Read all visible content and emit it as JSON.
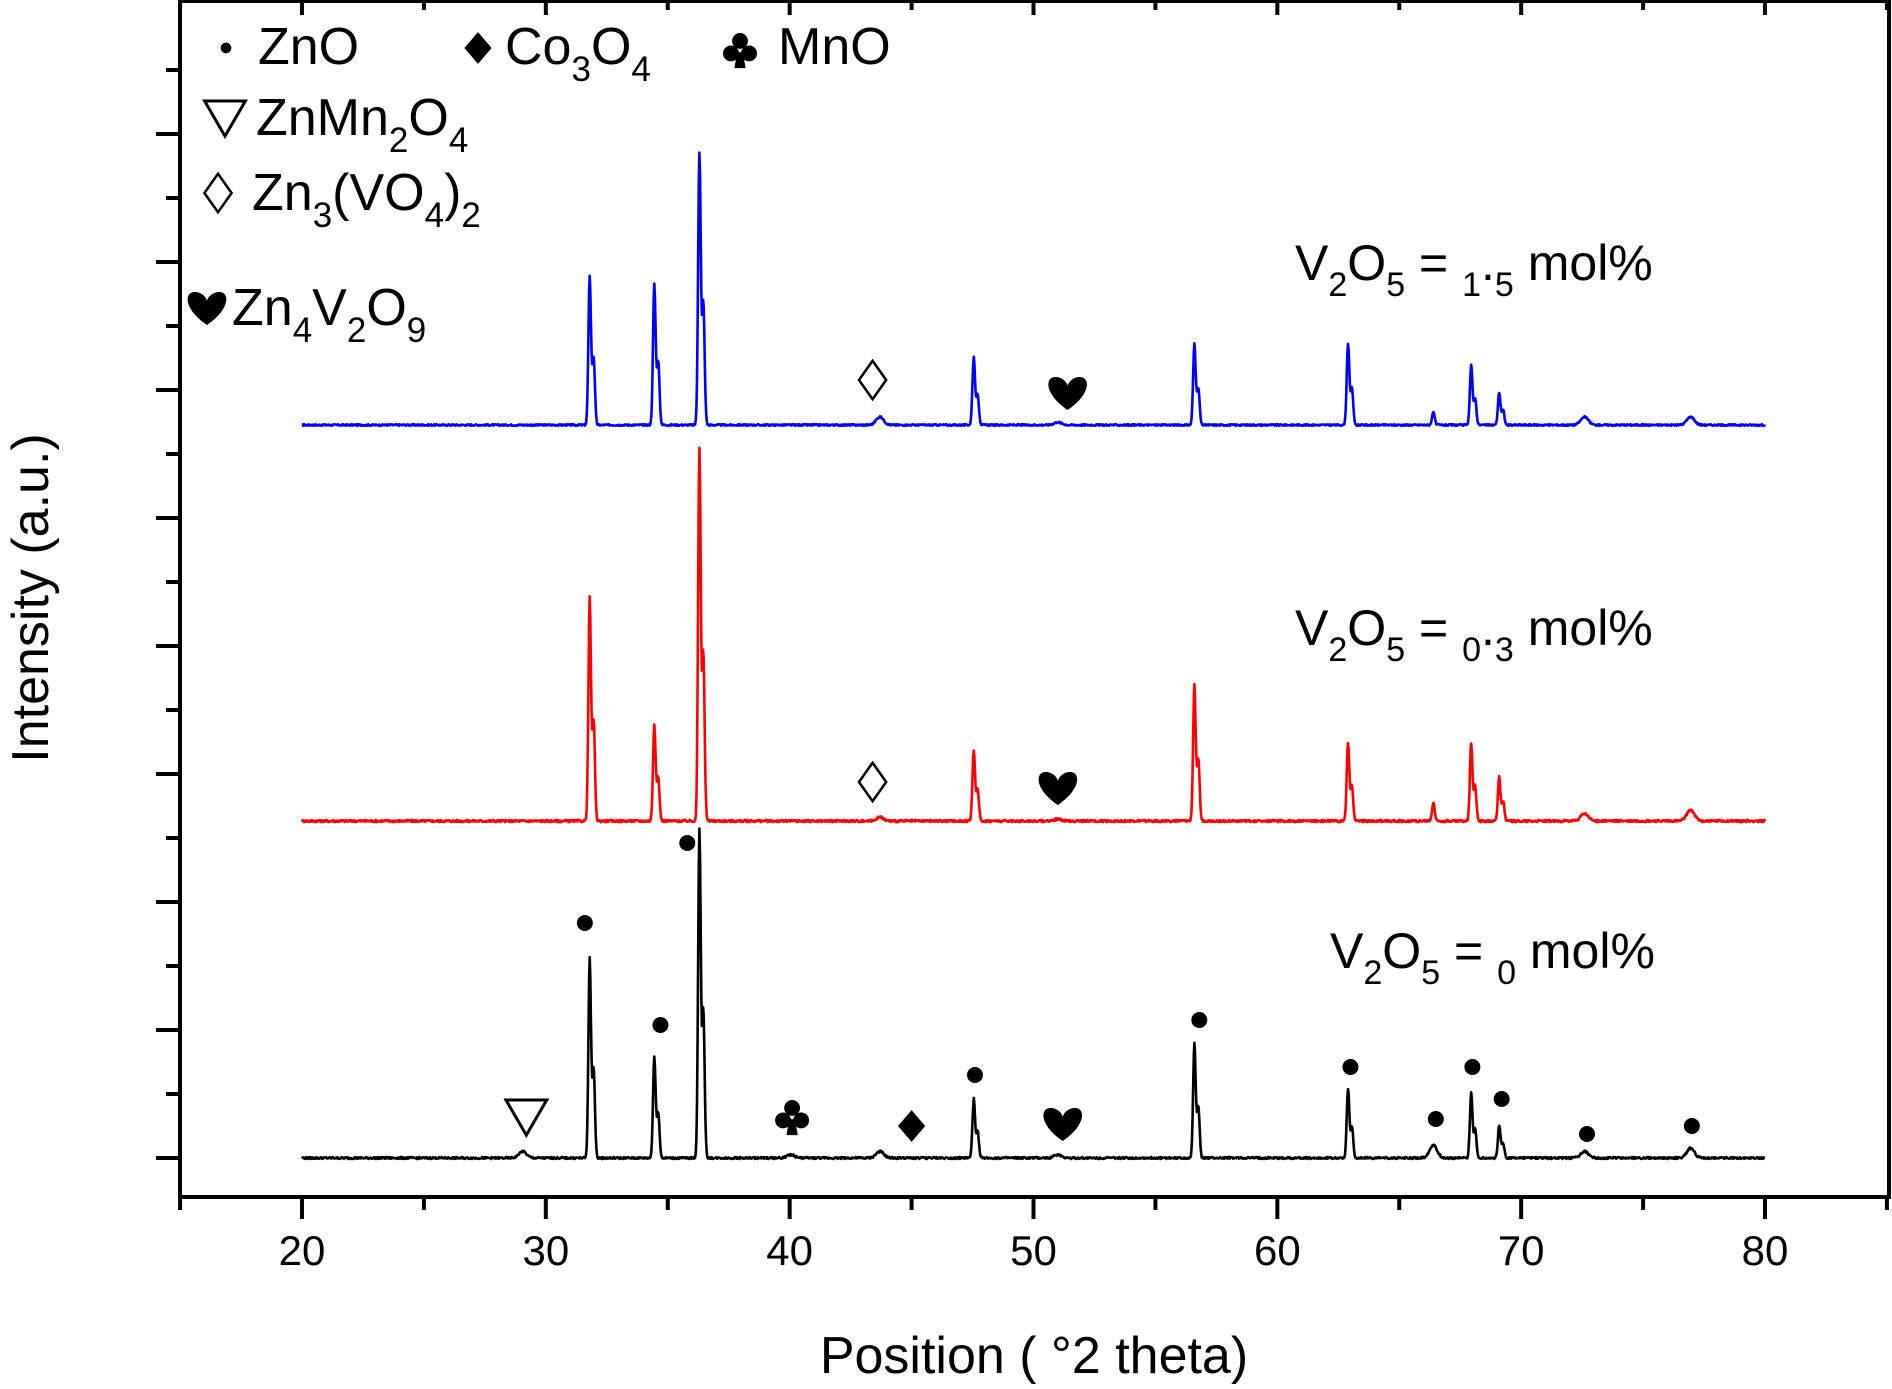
{
  "chart_data": {
    "type": "line",
    "xlabel": "Position ( °2 theta)",
    "ylabel": "Intensity (a.u.)",
    "xlim": [
      15,
      85
    ],
    "x_ticks": [
      "20",
      "30",
      "40",
      "50",
      "60",
      "70",
      "80"
    ],
    "y_tick_labels": "none",
    "grid": false,
    "legend_position": "top-left",
    "legend": [
      {
        "symbol": "filled-circle",
        "phase": "ZnO"
      },
      {
        "symbol": "filled-diamond",
        "phase": "Co3O4"
      },
      {
        "symbol": "club",
        "phase": "MnO"
      },
      {
        "symbol": "open-triangle-down",
        "phase": "ZnMn2O4"
      },
      {
        "symbol": "open-diamond",
        "phase": "Zn3(VO4)2"
      },
      {
        "symbol": "heart",
        "phase": "Zn4V2O9"
      }
    ],
    "series": [
      {
        "name": "V2O5 = 1.5 mol%",
        "color": "#0000ff",
        "peaks": [
          {
            "x": 31.8,
            "height": 0.55
          },
          {
            "x": 34.45,
            "height": 0.52
          },
          {
            "x": 36.3,
            "height": 1.0
          },
          {
            "x": 43.7,
            "height": 0.03
          },
          {
            "x": 47.55,
            "height": 0.25
          },
          {
            "x": 51.0,
            "height": 0.01
          },
          {
            "x": 56.6,
            "height": 0.3
          },
          {
            "x": 62.9,
            "height": 0.3
          },
          {
            "x": 66.4,
            "height": 0.05
          },
          {
            "x": 67.95,
            "height": 0.22
          },
          {
            "x": 69.1,
            "height": 0.12
          },
          {
            "x": 72.6,
            "height": 0.03
          },
          {
            "x": 76.95,
            "height": 0.03
          }
        ],
        "markers": [
          {
            "x": 43.4,
            "symbol": "open-diamond"
          },
          {
            "x": 51.4,
            "symbol": "heart"
          }
        ]
      },
      {
        "name": "V2O5 = 0.3 mol%",
        "color": "#ff0000",
        "peaks": [
          {
            "x": 31.8,
            "height": 0.6
          },
          {
            "x": 34.45,
            "height": 0.26
          },
          {
            "x": 36.3,
            "height": 1.0
          },
          {
            "x": 43.7,
            "height": 0.01
          },
          {
            "x": 47.55,
            "height": 0.19
          },
          {
            "x": 51.0,
            "height": 0.005
          },
          {
            "x": 56.6,
            "height": 0.37
          },
          {
            "x": 62.9,
            "height": 0.21
          },
          {
            "x": 66.4,
            "height": 0.05
          },
          {
            "x": 67.95,
            "height": 0.21
          },
          {
            "x": 69.1,
            "height": 0.12
          },
          {
            "x": 72.6,
            "height": 0.02
          },
          {
            "x": 76.95,
            "height": 0.03
          }
        ],
        "markers": [
          {
            "x": 43.4,
            "symbol": "open-diamond"
          },
          {
            "x": 51.0,
            "symbol": "heart"
          }
        ]
      },
      {
        "name": "V2O5 = 0 mol%",
        "color": "#000000",
        "peaks": [
          {
            "x": 29.05,
            "height": 0.02
          },
          {
            "x": 31.8,
            "height": 0.61
          },
          {
            "x": 34.45,
            "height": 0.31
          },
          {
            "x": 36.3,
            "height": 1.0
          },
          {
            "x": 40.05,
            "height": 0.01
          },
          {
            "x": 43.7,
            "height": 0.02
          },
          {
            "x": 47.55,
            "height": 0.18
          },
          {
            "x": 51.0,
            "height": 0.01
          },
          {
            "x": 56.6,
            "height": 0.35
          },
          {
            "x": 62.9,
            "height": 0.21
          },
          {
            "x": 66.4,
            "height": 0.04
          },
          {
            "x": 67.95,
            "height": 0.2
          },
          {
            "x": 69.1,
            "height": 0.1
          },
          {
            "x": 72.6,
            "height": 0.02
          },
          {
            "x": 76.95,
            "height": 0.03
          }
        ],
        "markers": [
          {
            "x": 29.2,
            "symbol": "open-triangle-down"
          },
          {
            "x": 31.6,
            "symbol": "filled-circle"
          },
          {
            "x": 34.7,
            "symbol": "filled-circle"
          },
          {
            "x": 35.8,
            "symbol": "filled-circle"
          },
          {
            "x": 40.1,
            "symbol": "club"
          },
          {
            "x": 45.0,
            "symbol": "filled-diamond"
          },
          {
            "x": 47.6,
            "symbol": "filled-circle"
          },
          {
            "x": 51.2,
            "symbol": "heart"
          },
          {
            "x": 56.8,
            "symbol": "filled-circle"
          },
          {
            "x": 63.0,
            "symbol": "filled-circle"
          },
          {
            "x": 66.5,
            "symbol": "filled-circle"
          },
          {
            "x": 68.0,
            "symbol": "filled-circle"
          },
          {
            "x": 69.2,
            "symbol": "filled-circle"
          },
          {
            "x": 72.7,
            "symbol": "filled-circle"
          },
          {
            "x": 77.0,
            "symbol": "filled-circle"
          }
        ]
      }
    ]
  }
}
